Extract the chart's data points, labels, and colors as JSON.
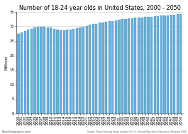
{
  "title": "Number of 18-24 year olds in United States, 2000 - 2050",
  "ylabel": "Millions",
  "years": [
    2000,
    2001,
    2002,
    2003,
    2004,
    2005,
    2006,
    2007,
    2008,
    2009,
    2010,
    2011,
    2012,
    2013,
    2014,
    2015,
    2016,
    2017,
    2018,
    2019,
    2020,
    2021,
    2022,
    2023,
    2024,
    2025,
    2026,
    2027,
    2028,
    2029,
    2030,
    2031,
    2032,
    2033,
    2034,
    2035,
    2036,
    2037,
    2038,
    2039,
    2040,
    2041,
    2042,
    2043,
    2044,
    2045,
    2046,
    2047,
    2048,
    2049,
    2050
  ],
  "values": [
    27.4,
    27.9,
    28.4,
    28.9,
    29.2,
    29.5,
    29.8,
    29.9,
    29.9,
    29.7,
    29.5,
    29.1,
    28.8,
    28.7,
    28.7,
    28.9,
    28.9,
    29.1,
    29.3,
    29.6,
    29.9,
    30.2,
    30.5,
    30.7,
    30.9,
    31.2,
    31.4,
    31.5,
    31.7,
    31.9,
    32.0,
    32.2,
    32.4,
    32.6,
    32.7,
    32.8,
    32.9,
    33.0,
    33.1,
    33.2,
    33.2,
    33.3,
    33.4,
    33.5,
    33.6,
    33.7,
    33.8,
    33.9,
    34.0,
    34.1,
    34.3
  ],
  "bar_color": "#6aaed6",
  "bar_edge_color": "#4a90c4",
  "background_color": "#ffffff",
  "ylim": [
    0,
    35
  ],
  "yticks": [
    0,
    5,
    10,
    15,
    20,
    25,
    30,
    35
  ],
  "ytick_labels": [
    "0",
    "5",
    "10",
    "15",
    "20",
    "25",
    "30",
    "35"
  ],
  "title_fontsize": 5.8,
  "tick_fontsize": 3.8,
  "ylabel_fontsize": 4.0,
  "source_text": "Source: Praxis Strategy Group analysis of U.S. Census Population Projections, Released 2008",
  "footer_left": "NewGeography.com"
}
